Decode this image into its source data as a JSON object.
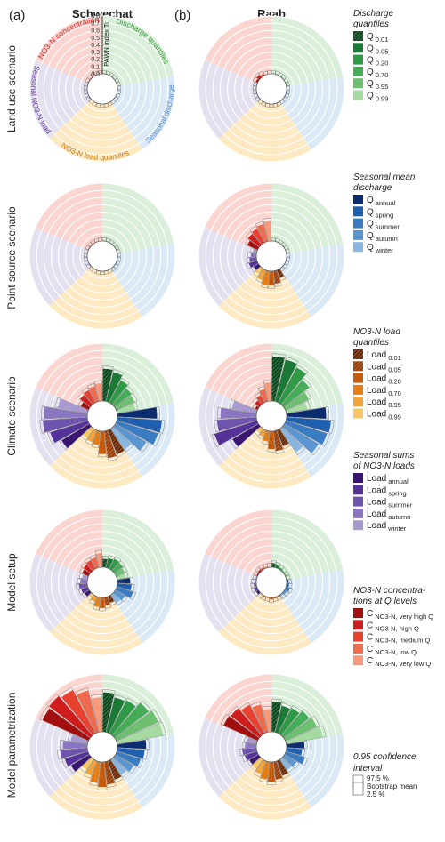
{
  "panel_labels": [
    "(a)",
    "(b)"
  ],
  "column_titles": [
    "Schwechat",
    "Raab"
  ],
  "row_labels": [
    "Land use scenario",
    "Point source scenario",
    "Climate scenario",
    "Model setup",
    "Model parametrization"
  ],
  "sector_labels": [
    {
      "name": "Discharge quantiles",
      "color": "#3a9a3a"
    },
    {
      "name": "Seasonal discharge",
      "color": "#4f86c6"
    },
    {
      "name": "NO3-N load quantiles",
      "color": "#c8780f"
    },
    {
      "name": "Seasonal NO3-N load",
      "color": "#6a3d9a"
    },
    {
      "name": "NO3-N concentration",
      "color": "#d62728"
    }
  ],
  "sector_background_colors": [
    "#d9efd9",
    "#dbe9f6",
    "#fde9c2",
    "#e3e0f0",
    "#fbd5cf"
  ],
  "legend": {
    "groups": [
      {
        "title": "Discharge quantiles",
        "items": [
          {
            "main": "Q",
            "sub": "0.01",
            "color": "#0b4a1c",
            "hatch": true
          },
          {
            "main": "Q",
            "sub": "0.05",
            "color": "#1a7a35"
          },
          {
            "main": "Q",
            "sub": "0.20",
            "color": "#2e9a45"
          },
          {
            "main": "Q",
            "sub": "0.70",
            "color": "#45ad58"
          },
          {
            "main": "Q",
            "sub": "0.95",
            "color": "#6cc070"
          },
          {
            "main": "Q",
            "sub": "0.99",
            "color": "#a5dba0"
          }
        ]
      },
      {
        "title": "Seasonal mean discharge",
        "items": [
          {
            "main": "Q",
            "sub": "annual",
            "color": "#0b2c6e"
          },
          {
            "main": "Q",
            "sub": "spring",
            "color": "#1f5fae"
          },
          {
            "main": "Q",
            "sub": "summer",
            "color": "#3a7cc4"
          },
          {
            "main": "Q",
            "sub": "autumn",
            "color": "#5a97d2"
          },
          {
            "main": "Q",
            "sub": "winter",
            "color": "#88b6e0"
          }
        ]
      },
      {
        "title": "NO3-N load quantiles",
        "items": [
          {
            "main": "Load",
            "sub": "0.01",
            "color": "#6b2a05",
            "hatch": true
          },
          {
            "main": "Load",
            "sub": "0.05",
            "color": "#9c3e06",
            "hatch": true
          },
          {
            "main": "Load",
            "sub": "0.20",
            "color": "#c85a0b"
          },
          {
            "main": "Load",
            "sub": "0.70",
            "color": "#e67e14"
          },
          {
            "main": "Load",
            "sub": "0.95",
            "color": "#f4a23a"
          },
          {
            "main": "Load",
            "sub": "0.99",
            "color": "#f9c763"
          }
        ]
      },
      {
        "title": "Seasonal sums of NO3-N loads",
        "items": [
          {
            "main": "Load",
            "sub": "annual",
            "color": "#3a1670"
          },
          {
            "main": "Load",
            "sub": "spring",
            "color": "#54329a"
          },
          {
            "main": "Load",
            "sub": "summer",
            "color": "#6f54ad"
          },
          {
            "main": "Load",
            "sub": "autumn",
            "color": "#8a76c0"
          },
          {
            "main": "Load",
            "sub": "winter",
            "color": "#a99ad2"
          }
        ]
      },
      {
        "title": "NO3-N concentrations at Q levels",
        "items": [
          {
            "main": "C",
            "sub": "NO3-N, very high Q",
            "color": "#a10f0f"
          },
          {
            "main": "C",
            "sub": "NO3-N, high Q",
            "color": "#cf1d1d"
          },
          {
            "main": "C",
            "sub": "NO3-N, medium Q",
            "color": "#e8412f"
          },
          {
            "main": "C",
            "sub": "NO3-N, low Q",
            "color": "#f06b4e"
          },
          {
            "main": "C",
            "sub": "NO3-N, very low Q",
            "color": "#f89a7a"
          }
        ]
      }
    ],
    "ci": {
      "title": "0.95 confidence interval",
      "upper": "97.5 %",
      "mean": "Bootstrap mean",
      "lower": "2.5 %"
    }
  },
  "chart_data": {
    "type": "radial_bar",
    "value_axis": {
      "title": "PAWN index Ti",
      "ticks": [
        "0.0",
        "0.1",
        "0.2",
        "0.3",
        "0.4",
        "0.5",
        "0.6",
        "0.7",
        "0.8"
      ],
      "range": [
        0,
        0.8
      ]
    },
    "categories": [
      "Q 0.01",
      "Q 0.05",
      "Q 0.20",
      "Q 0.70",
      "Q 0.95",
      "Q 0.99",
      "Q annual",
      "Q spring",
      "Q summer",
      "Q autumn",
      "Q winter",
      "Load 0.01",
      "Load 0.05",
      "Load 0.20",
      "Load 0.70",
      "Load 0.95",
      "Load 0.99",
      "Load annual",
      "Load spring",
      "Load summer",
      "Load autumn",
      "Load winter",
      "C very high Q",
      "C high Q",
      "C medium Q",
      "C low Q",
      "C very low Q"
    ],
    "panels": [
      {
        "catchment": "Schwechat",
        "scenario": "Land use scenario",
        "values": [
          0.01,
          0.01,
          0.01,
          0.01,
          0.01,
          0.01,
          0.01,
          0.01,
          0.01,
          0.01,
          0.01,
          0.01,
          0.01,
          0.01,
          0.01,
          0.01,
          0.01,
          0.01,
          0.01,
          0.01,
          0.01,
          0.01,
          0.01,
          0.01,
          0.01,
          0.01,
          0.01
        ]
      },
      {
        "catchment": "Raab",
        "scenario": "Land use scenario",
        "values": [
          0.01,
          0.01,
          0.01,
          0.01,
          0.01,
          0.01,
          0.01,
          0.01,
          0.01,
          0.01,
          0.01,
          0.01,
          0.01,
          0.01,
          0.01,
          0.01,
          0.01,
          0.01,
          0.01,
          0.01,
          0.01,
          0.01,
          0.03,
          0.05,
          0.03,
          0.01,
          0.01
        ]
      },
      {
        "catchment": "Schwechat",
        "scenario": "Point source scenario",
        "values": [
          0.01,
          0.01,
          0.01,
          0.01,
          0.01,
          0.01,
          0.01,
          0.01,
          0.01,
          0.01,
          0.01,
          0.01,
          0.01,
          0.01,
          0.01,
          0.01,
          0.01,
          0.01,
          0.01,
          0.01,
          0.01,
          0.01,
          0.01,
          0.01,
          0.01,
          0.01,
          0.01
        ]
      },
      {
        "catchment": "Raab",
        "scenario": "Point source scenario",
        "values": [
          0.01,
          0.01,
          0.01,
          0.01,
          0.01,
          0.01,
          0.01,
          0.01,
          0.01,
          0.01,
          0.01,
          0.12,
          0.18,
          0.2,
          0.2,
          0.15,
          0.1,
          0.08,
          0.12,
          0.1,
          0.08,
          0.06,
          0.16,
          0.2,
          0.22,
          0.25,
          0.28
        ]
      },
      {
        "catchment": "Schwechat",
        "scenario": "Climate scenario",
        "values": [
          0.45,
          0.42,
          0.35,
          0.3,
          0.28,
          0.26,
          0.55,
          0.62,
          0.6,
          0.5,
          0.35,
          0.36,
          0.38,
          0.32,
          0.2,
          0.18,
          0.16,
          0.45,
          0.55,
          0.62,
          0.6,
          0.42,
          0.12,
          0.18,
          0.2,
          0.22,
          0.25
        ]
      },
      {
        "catchment": "Raab",
        "scenario": "Climate scenario",
        "values": [
          0.62,
          0.6,
          0.55,
          0.45,
          0.36,
          0.3,
          0.55,
          0.62,
          0.6,
          0.55,
          0.4,
          0.24,
          0.28,
          0.25,
          0.15,
          0.1,
          0.08,
          0.42,
          0.62,
          0.55,
          0.5,
          0.35,
          0.04,
          0.08,
          0.12,
          0.18,
          0.26
        ]
      },
      {
        "catchment": "Schwechat",
        "scenario": "Model setup",
        "values": [
          0.12,
          0.14,
          0.16,
          0.15,
          0.13,
          0.12,
          0.18,
          0.2,
          0.24,
          0.16,
          0.14,
          0.1,
          0.12,
          0.15,
          0.14,
          0.08,
          0.06,
          0.08,
          0.1,
          0.12,
          0.1,
          0.08,
          0.1,
          0.12,
          0.14,
          0.15,
          0.2
        ]
      },
      {
        "catchment": "Raab",
        "scenario": "Model setup",
        "values": [
          0.06,
          0.04,
          0.03,
          0.02,
          0.02,
          0.02,
          0.03,
          0.04,
          0.06,
          0.04,
          0.03,
          0.02,
          0.02,
          0.03,
          0.02,
          0.02,
          0.02,
          0.04,
          0.05,
          0.04,
          0.03,
          0.02,
          0.02,
          0.03,
          0.03,
          0.02,
          0.02
        ]
      },
      {
        "catchment": "Schwechat",
        "scenario": "Model parametrization",
        "values": [
          0.55,
          0.5,
          0.52,
          0.6,
          0.64,
          0.65,
          0.4,
          0.38,
          0.35,
          0.3,
          0.26,
          0.28,
          0.32,
          0.35,
          0.3,
          0.22,
          0.18,
          0.3,
          0.34,
          0.38,
          0.34,
          0.24,
          0.7,
          0.72,
          0.68,
          0.6,
          0.48
        ]
      },
      {
        "catchment": "Raab",
        "scenario": "Model parametrization",
        "values": [
          0.42,
          0.38,
          0.4,
          0.45,
          0.48,
          0.52,
          0.25,
          0.22,
          0.28,
          0.2,
          0.18,
          0.22,
          0.25,
          0.28,
          0.25,
          0.2,
          0.16,
          0.15,
          0.18,
          0.2,
          0.16,
          0.14,
          0.52,
          0.5,
          0.45,
          0.4,
          0.32
        ]
      }
    ]
  }
}
